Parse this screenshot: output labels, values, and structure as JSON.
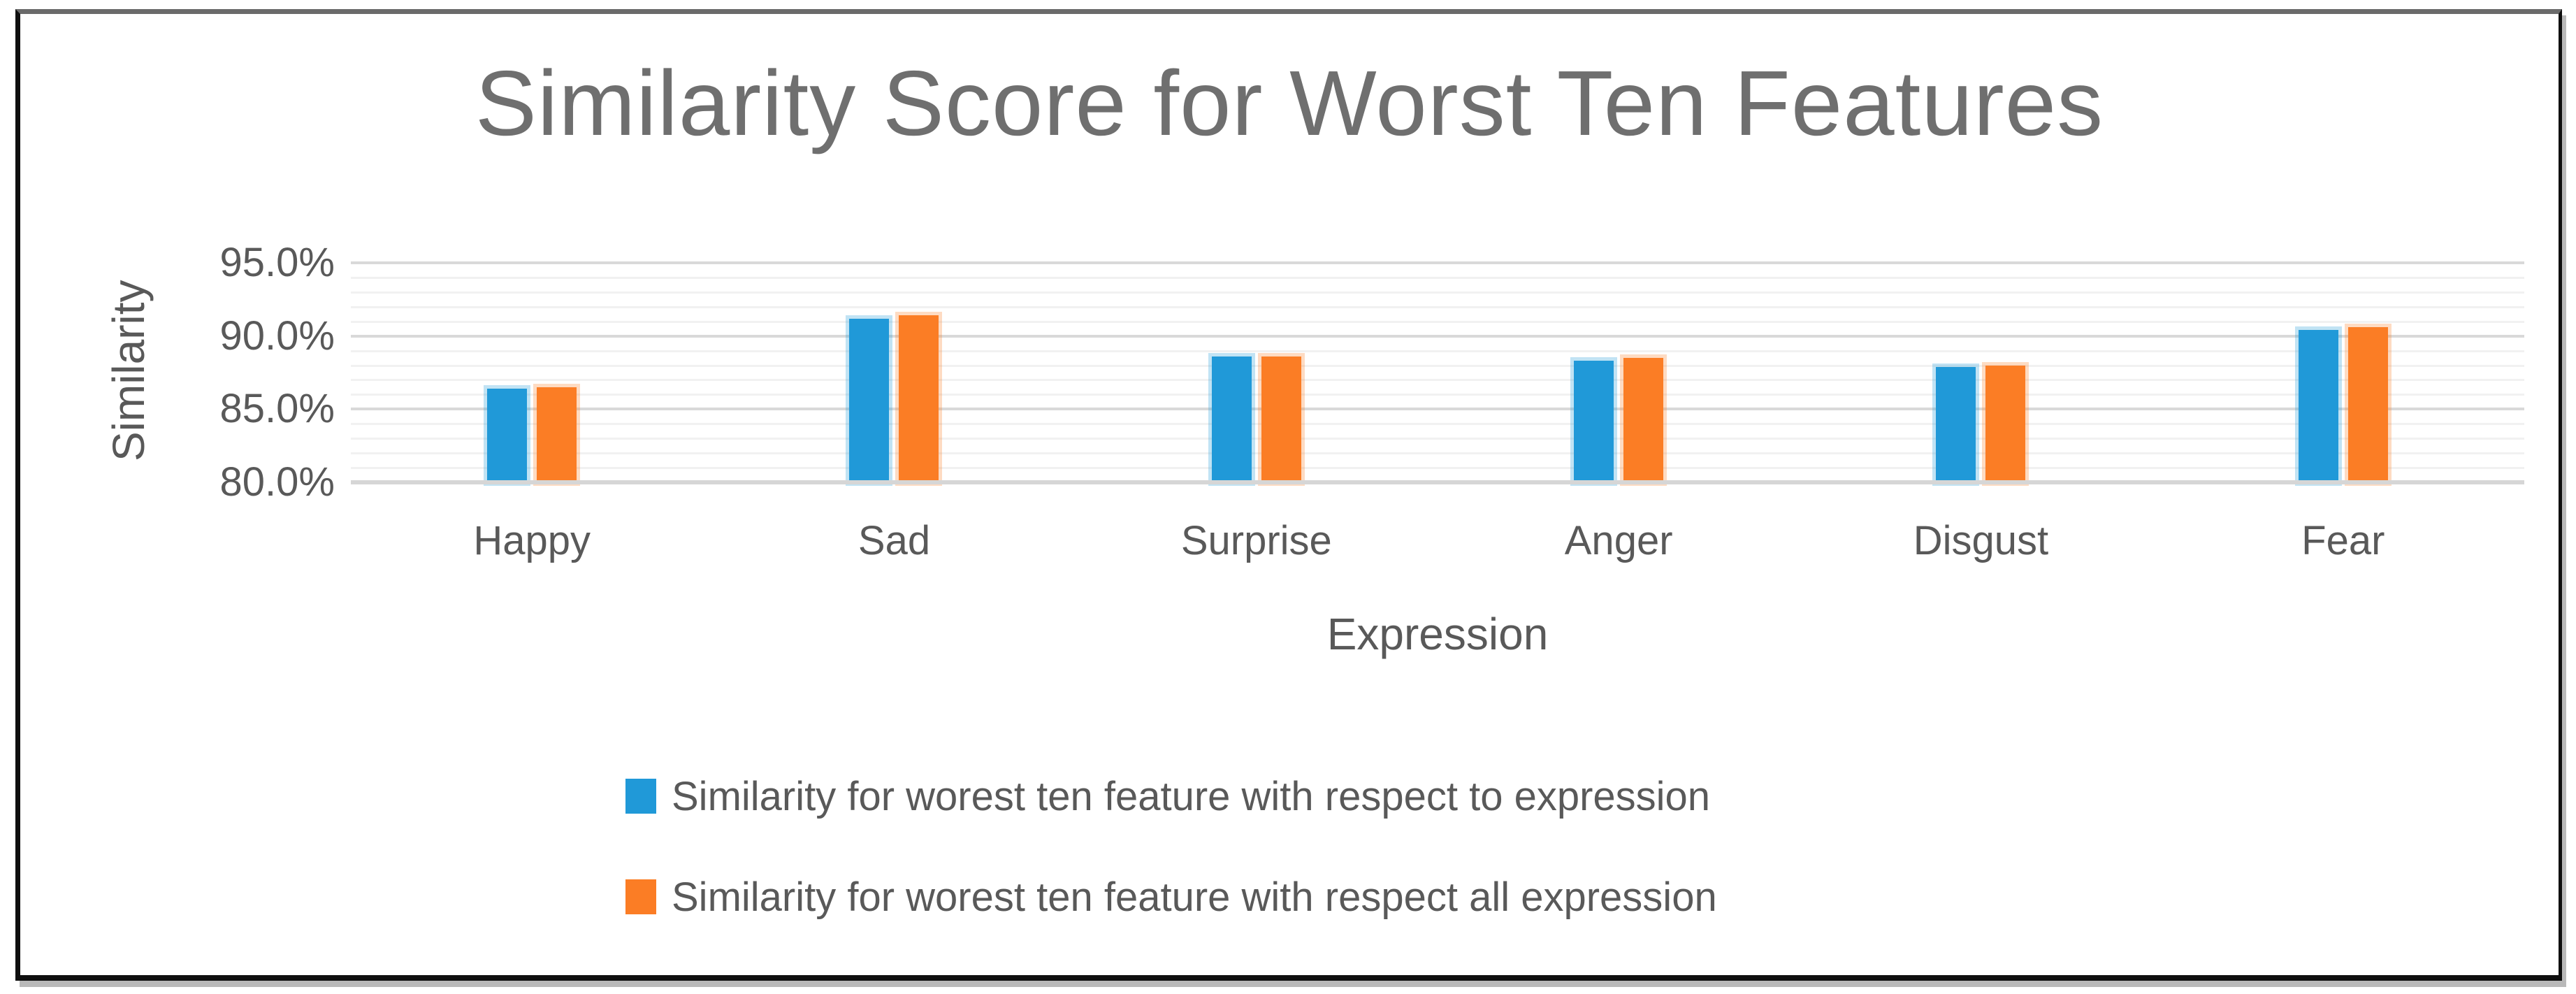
{
  "window": {
    "background": "#ffffff",
    "frame_border_color": "#0f0f0f",
    "frame_border_top_color": "#6a6a6a",
    "frame_shadow_color": "#b9b9b9"
  },
  "chart_data": {
    "type": "bar",
    "title": "Similarity Score for Worst Ten Features",
    "xlabel": "Expression",
    "ylabel": "Similarity",
    "categories": [
      "Happy",
      "Sad",
      "Surprise",
      "Anger",
      "Disgust",
      "Fear"
    ],
    "series": [
      {
        "name": "Similarity for worest ten feature with respect to expression",
        "color": "#2099D8",
        "values": [
          86.4,
          91.2,
          88.6,
          88.3,
          87.9,
          90.4
        ]
      },
      {
        "name": "Similarity for worest ten feature with respect all expression",
        "color": "#FB7D25",
        "values": [
          86.5,
          91.4,
          88.6,
          88.5,
          88.0,
          90.6
        ]
      }
    ],
    "ylim": [
      80,
      95
    ],
    "y_major_step": 5,
    "y_minor_step": 1,
    "y_ticks": [
      {
        "value": 95,
        "label": "95.0%"
      },
      {
        "value": 90,
        "label": "90.0%"
      },
      {
        "value": 85,
        "label": "85.0%"
      },
      {
        "value": 80,
        "label": "80.0%"
      }
    ],
    "grid": "horizontal major and minor gridlines",
    "legend_position": "bottom, stacked rows, left-aligned markers",
    "colors": {
      "major_grid": "#d9d9d9",
      "minor_grid": "#f1f1f1",
      "axis_line": "#d6d6d6",
      "title_text": "#6f6f6f",
      "axis_text": "#595959"
    }
  }
}
